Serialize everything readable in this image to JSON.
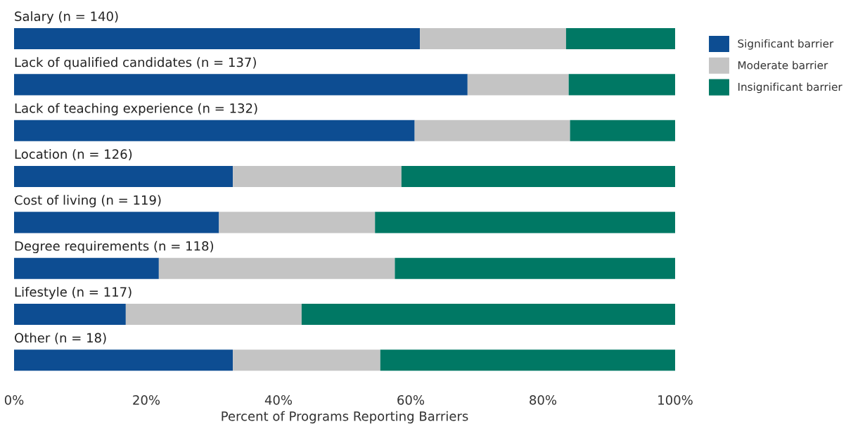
{
  "chart_data": {
    "type": "bar",
    "orientation": "horizontal",
    "stacked": true,
    "categories": [
      "Salary (n = 140)",
      "Lack of qualified candidates (n = 137)",
      "Lack of teaching experience (n = 132)",
      "Location (n = 126)",
      "Cost of living (n = 119)",
      "Degree requirements (n = 118)",
      "Lifestyle (n = 117)",
      "Other (n = 18)"
    ],
    "series": [
      {
        "name": "Significant barrier",
        "color": "#0d4d92",
        "values": [
          61.4,
          68.6,
          60.6,
          33.1,
          31.0,
          21.9,
          16.9,
          33.1
        ]
      },
      {
        "name": "Moderate barrier",
        "color": "#c4c4c4",
        "values": [
          22.1,
          15.3,
          23.5,
          25.5,
          23.6,
          35.7,
          26.6,
          22.3
        ]
      },
      {
        "name": "Insignificant barrier",
        "color": "#007864",
        "values": [
          16.5,
          16.1,
          15.9,
          41.4,
          45.4,
          42.4,
          56.5,
          44.6
        ]
      }
    ],
    "xlim": [
      0,
      100
    ],
    "xticks": [
      {
        "value": 0,
        "label": "0%"
      },
      {
        "value": 20,
        "label": "20%"
      },
      {
        "value": 40,
        "label": "40%"
      },
      {
        "value": 60,
        "label": "60%"
      },
      {
        "value": 80,
        "label": "80%"
      },
      {
        "value": 100,
        "label": "100%"
      }
    ],
    "xlabel": "Percent of Programs Reporting Barriers",
    "legend": "right",
    "grid": false
  }
}
